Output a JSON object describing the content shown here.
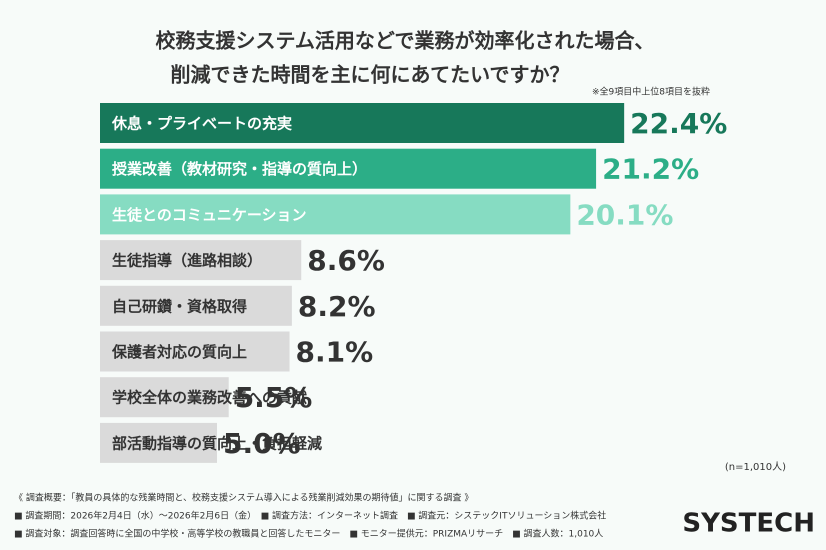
{
  "chart_data": {
    "type": "bar",
    "title": "校務支援システム活用などで業務が効率化された場合、",
    "subtitle": "削減できた時間を主に何にあてたいですか？",
    "note": "※全9項目中上位8項目を抜粋",
    "categories": [
      "休息・プライベートの充実",
      "授業改善（教材研究・指導の質向上）",
      "生徒とのコミュニケーション",
      "生徒指導（進路相談）",
      "自己研鑽・資格取得",
      "保護者対応の質向上",
      "学校全体の業務改善への貢献",
      "部活動指導の質向上・負担軽減"
    ],
    "values": [
      22.4,
      21.2,
      20.1,
      8.6,
      8.2,
      8.1,
      5.5,
      5.0
    ],
    "value_labels": [
      "22.4%",
      "21.2%",
      "20.1%",
      "8.6%",
      "8.2%",
      "8.1%",
      "5.5%",
      "5.0%"
    ],
    "colors": [
      "#17785a",
      "#2cae87",
      "#86dcc2",
      "#dadada",
      "#dadada",
      "#dadada",
      "#dadada",
      "#dadada"
    ],
    "label_colors": [
      "#17785a",
      "#2cae87",
      "#86dcc2",
      "#333333",
      "#333333",
      "#333333",
      "#333333",
      "#333333"
    ],
    "sample": "(n=1,010人)",
    "footer": [
      "《 調査概要：「教員の具体的な残業時間と、校務支援システム導入による残業削減効果の期待値」に関する調査 》",
      "■ 調査期間：2026年2月4日（水）〜2026年2月6日（金）　■ 調査方法：インターネット調査　■ 調査元：システックITソリューション株式会社",
      "■ 調査対象：調査回答時に全国の中学校・高等学校の教職員と回答したモニター　■ モニター提供元：PRIZMAリサーチ　■ 調査人数：1,010人"
    ],
    "logo": "SYSTECH"
  }
}
